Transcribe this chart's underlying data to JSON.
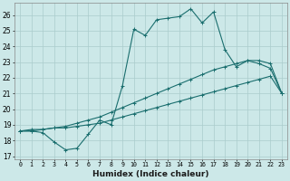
{
  "xlabel": "Humidex (Indice chaleur)",
  "background_color": "#cce8e8",
  "grid_color": "#b0d4d4",
  "line_color": "#1a6e6e",
  "xlim": [
    -0.5,
    23.5
  ],
  "ylim": [
    16.8,
    26.8
  ],
  "xticks": [
    0,
    1,
    2,
    3,
    4,
    5,
    6,
    7,
    8,
    9,
    10,
    11,
    12,
    13,
    14,
    15,
    16,
    17,
    18,
    19,
    20,
    21,
    22,
    23
  ],
  "yticks": [
    17,
    18,
    19,
    20,
    21,
    22,
    23,
    24,
    25,
    26
  ],
  "curve1_x": [
    0,
    1,
    2,
    3,
    4,
    5,
    6,
    7,
    8,
    9,
    10,
    11,
    12,
    13,
    14,
    15,
    16,
    17,
    18,
    19,
    20,
    21,
    22,
    23
  ],
  "curve1_y": [
    18.6,
    18.6,
    18.5,
    17.9,
    17.4,
    17.5,
    18.4,
    19.3,
    19.0,
    21.5,
    25.1,
    24.7,
    25.7,
    25.8,
    25.9,
    26.4,
    25.5,
    26.2,
    23.8,
    22.7,
    23.1,
    23.1,
    22.9,
    21.0
  ],
  "curve2_x": [
    0,
    1,
    2,
    3,
    4,
    5,
    6,
    7,
    8,
    9,
    10,
    11,
    12,
    13,
    14,
    15,
    16,
    17,
    18,
    19,
    20,
    21,
    22,
    23
  ],
  "curve2_y": [
    18.6,
    18.7,
    18.7,
    18.8,
    18.8,
    18.9,
    19.0,
    19.1,
    19.3,
    19.5,
    19.7,
    19.9,
    20.1,
    20.3,
    20.5,
    20.7,
    20.9,
    21.1,
    21.3,
    21.5,
    21.7,
    21.9,
    22.1,
    21.0
  ],
  "curve3_x": [
    0,
    1,
    2,
    3,
    4,
    5,
    6,
    7,
    8,
    9,
    10,
    11,
    12,
    13,
    14,
    15,
    16,
    17,
    18,
    19,
    20,
    21,
    22,
    23
  ],
  "curve3_y": [
    18.6,
    18.6,
    18.7,
    18.8,
    18.9,
    19.1,
    19.3,
    19.5,
    19.8,
    20.1,
    20.4,
    20.7,
    21.0,
    21.3,
    21.6,
    21.9,
    22.2,
    22.5,
    22.7,
    22.9,
    23.1,
    22.9,
    22.6,
    21.0
  ]
}
